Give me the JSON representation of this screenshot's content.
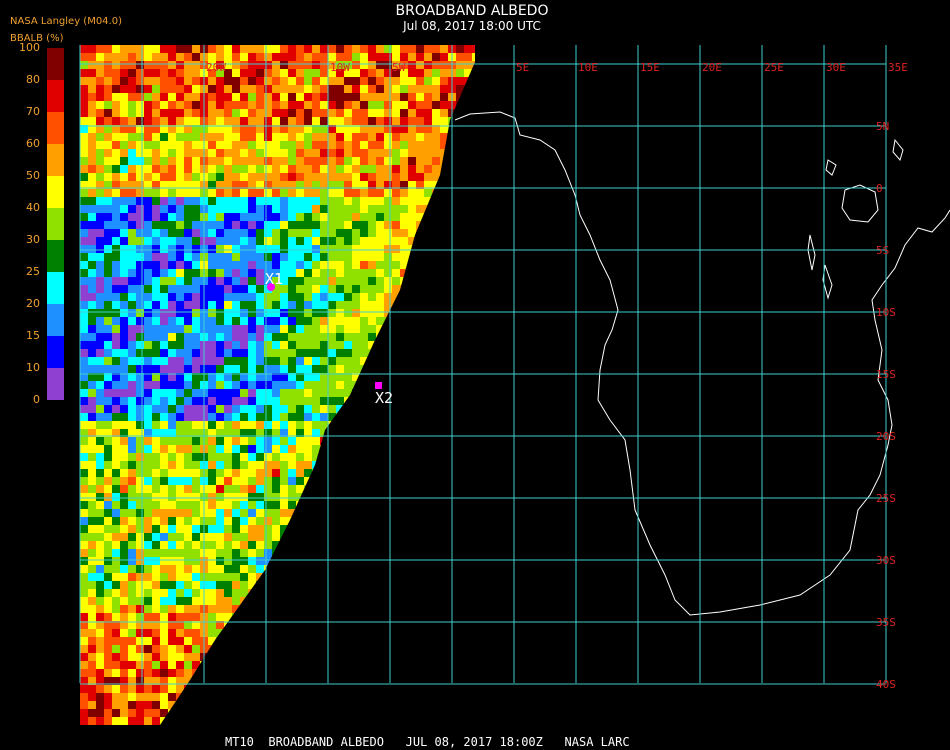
{
  "header": {
    "title": "BROADBAND ALBEDO",
    "subtitle": "Jul 08, 2017 18:00 UTC",
    "source": "NASA Langley (M04.0)",
    "variable": "BBALB (%)"
  },
  "legend": {
    "labels": [
      "100",
      "80",
      "70",
      "60",
      "50",
      "40",
      "30",
      "25",
      "20",
      "15",
      "10",
      "0"
    ],
    "colors": [
      "#800000",
      "#e00000",
      "#ff5000",
      "#ffa000",
      "#ffff00",
      "#90e000",
      "#008000",
      "#00ffff",
      "#1e90ff",
      "#0000ff",
      "#9040d0"
    ]
  },
  "grid": {
    "lon_labels": [
      "20W",
      "10W",
      "5W",
      "5E",
      "10E",
      "15E",
      "20E",
      "25E",
      "30E",
      "35E"
    ],
    "lat_labels": [
      "5N",
      "0",
      "5S",
      "10S",
      "15S",
      "20S",
      "25S",
      "30S",
      "35S",
      "40S"
    ]
  },
  "markers": [
    {
      "label": "X1"
    },
    {
      "label": "X2"
    }
  ],
  "footer": "MT10  BROADBAND ALBEDO   JUL 08, 2017 18:00Z   NASA LARC"
}
